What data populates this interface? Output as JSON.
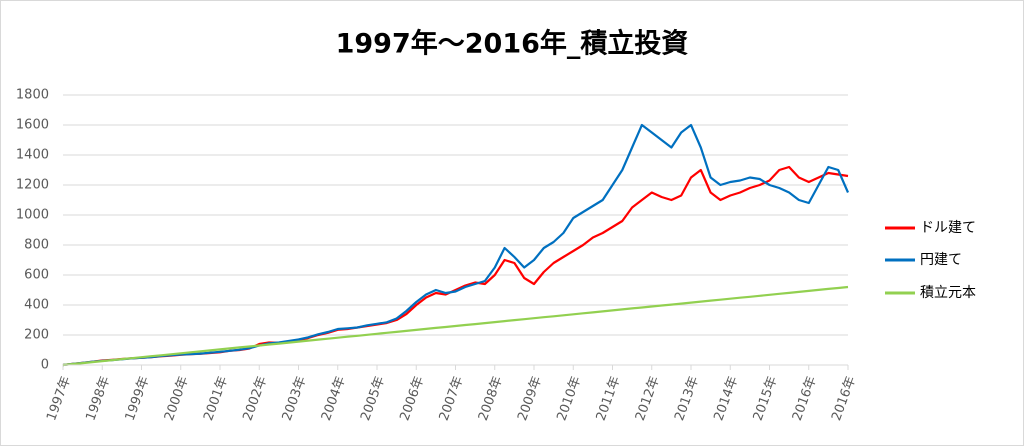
{
  "chart_data": {
    "type": "line",
    "title": "1997年〜2016年_積立投資",
    "categories": [
      "1997年",
      null,
      null,
      null,
      "1998年",
      null,
      null,
      null,
      "1999年",
      null,
      null,
      null,
      "2000年",
      null,
      null,
      null,
      "2001年",
      null,
      null,
      null,
      "2002年",
      null,
      null,
      null,
      "2003年",
      null,
      null,
      null,
      "2004年",
      null,
      null,
      null,
      "2005年",
      null,
      null,
      null,
      "2006年",
      null,
      null,
      null,
      "2007年",
      null,
      null,
      null,
      "2008年",
      null,
      null,
      null,
      "2009年",
      null,
      null,
      null,
      "2010年",
      null,
      null,
      null,
      "2011年",
      null,
      null,
      null,
      "2012年",
      null,
      null,
      null,
      "2013年",
      null,
      null,
      null,
      "2014年",
      null,
      null,
      null,
      "2015年",
      null,
      null,
      null,
      "2016年",
      null,
      null,
      null,
      "2016年"
    ],
    "series": [
      {
        "name": "ドル建て",
        "color": "#ff0000",
        "values": [
          0,
          8,
          15,
          22,
          30,
          35,
          40,
          45,
          48,
          52,
          58,
          62,
          68,
          72,
          75,
          80,
          85,
          95,
          100,
          110,
          140,
          150,
          148,
          155,
          165,
          180,
          200,
          215,
          235,
          240,
          250,
          260,
          270,
          280,
          300,
          340,
          400,
          450,
          480,
          470,
          500,
          530,
          550,
          540,
          600,
          700,
          680,
          580,
          540,
          620,
          680,
          720,
          760,
          800,
          850,
          880,
          920,
          960,
          1050,
          1100,
          1150,
          1120,
          1100,
          1130,
          1250,
          1300,
          1150,
          1100,
          1130,
          1150,
          1180,
          1200,
          1230,
          1300,
          1320,
          1250,
          1220,
          1250,
          1280,
          1270,
          1260
        ]
      },
      {
        "name": "円建て",
        "color": "#0070c0",
        "values": [
          0,
          8,
          15,
          22,
          28,
          33,
          38,
          44,
          48,
          53,
          60,
          65,
          70,
          72,
          76,
          82,
          88,
          95,
          102,
          112,
          130,
          145,
          150,
          160,
          170,
          185,
          205,
          220,
          240,
          245,
          250,
          265,
          275,
          285,
          310,
          360,
          420,
          470,
          500,
          480,
          490,
          520,
          540,
          560,
          650,
          780,
          720,
          650,
          700,
          780,
          820,
          880,
          980,
          1020,
          1060,
          1100,
          1200,
          1300,
          1450,
          1600,
          1550,
          1500,
          1450,
          1550,
          1600,
          1450,
          1250,
          1200,
          1220,
          1230,
          1250,
          1240,
          1200,
          1180,
          1150,
          1100,
          1080,
          1200,
          1320,
          1300,
          1150
        ]
      },
      {
        "name": "積立元本",
        "color": "#92d050",
        "values": [
          0,
          6.5,
          13,
          19.5,
          26,
          32.5,
          39,
          45.5,
          52,
          58.5,
          65,
          71.5,
          78,
          84.5,
          91,
          97.5,
          104,
          110.5,
          117,
          123.5,
          130,
          136.5,
          143,
          149.5,
          156,
          162.5,
          169,
          175.5,
          182,
          188.5,
          195,
          201.5,
          208,
          214.5,
          221,
          227.5,
          234,
          240.5,
          247,
          253.5,
          260,
          266.5,
          273,
          279.5,
          286,
          292.5,
          299,
          305.5,
          312,
          318.5,
          325,
          331.5,
          338,
          344.5,
          351,
          357.5,
          364,
          370.5,
          377,
          383.5,
          390,
          396.5,
          403,
          409.5,
          416,
          422.5,
          429,
          435.5,
          442,
          448.5,
          455,
          461.5,
          468,
          474.5,
          481,
          487.5,
          494,
          500.5,
          507,
          513.5,
          520
        ]
      }
    ],
    "ylim": [
      0,
      1800
    ],
    "yticks": [
      0,
      200,
      400,
      600,
      800,
      1000,
      1200,
      1400,
      1600,
      1800
    ],
    "grid": true,
    "legend": "right"
  }
}
